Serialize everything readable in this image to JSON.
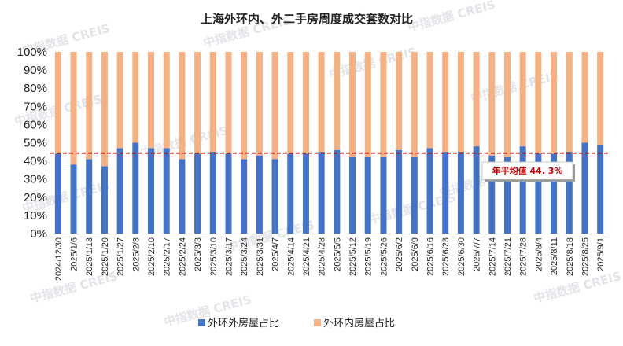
{
  "chart_data": {
    "type": "bar",
    "stacked": true,
    "title": "上海外环内、外二手房周度成交套数对比",
    "xlabel": "",
    "ylabel": "",
    "ylim": [
      0,
      100
    ],
    "y_ticks": [
      "0%",
      "10%",
      "20%",
      "30%",
      "40%",
      "50%",
      "60%",
      "70%",
      "80%",
      "90%",
      "100%"
    ],
    "categories": [
      "2024/12/30",
      "2025/1/6",
      "2025/1/13",
      "2025/1/20",
      "2025/1/27",
      "2025/2/3",
      "2025/2/10",
      "2025/2/17",
      "2025/2/24",
      "2025/3/3",
      "2025/3/10",
      "2025/3/17",
      "2025/3/24",
      "2025/3/31",
      "2025/4/7",
      "2025/4/14",
      "2025/4/21",
      "2025/4/28",
      "2025/5/5",
      "2025/5/12",
      "2025/5/19",
      "2025/5/26",
      "2025/6/2",
      "2025/6/9",
      "2025/6/16",
      "2025/6/23",
      "2025/6/30",
      "2025/7/7",
      "2025/7/14",
      "2025/7/21",
      "2025/7/28",
      "2025/8/4",
      "2025/8/11",
      "2025/8/18",
      "2025/8/25",
      "2025/9/1"
    ],
    "series": [
      {
        "name": "外环外房屋占比",
        "color": "#4472c4",
        "values": [
          44,
          38,
          41,
          37,
          47,
          50,
          47,
          47,
          41,
          44,
          45,
          44,
          41,
          43,
          41,
          44,
          44,
          45,
          46,
          42,
          42,
          42,
          46,
          42,
          47,
          45,
          45,
          48,
          43,
          42,
          48,
          44,
          44,
          45,
          50,
          49
        ]
      },
      {
        "name": "外环内房屋占比",
        "color": "#f4b183",
        "values": [
          56,
          62,
          59,
          63,
          53,
          50,
          53,
          53,
          59,
          56,
          55,
          56,
          59,
          57,
          59,
          56,
          56,
          55,
          54,
          58,
          58,
          58,
          54,
          58,
          53,
          55,
          55,
          52,
          57,
          58,
          52,
          56,
          56,
          55,
          50,
          51
        ]
      }
    ],
    "reference_line": {
      "value": 44.3,
      "color": "#c00000",
      "style": "dashed"
    },
    "annotation": {
      "text": "年平均值 44. 3%",
      "color": "#c00000"
    },
    "legend": {
      "position": "bottom",
      "entries": [
        "外环外房屋占比",
        "外环内房屋占比"
      ]
    },
    "watermark": "中指数据 CREIS"
  }
}
